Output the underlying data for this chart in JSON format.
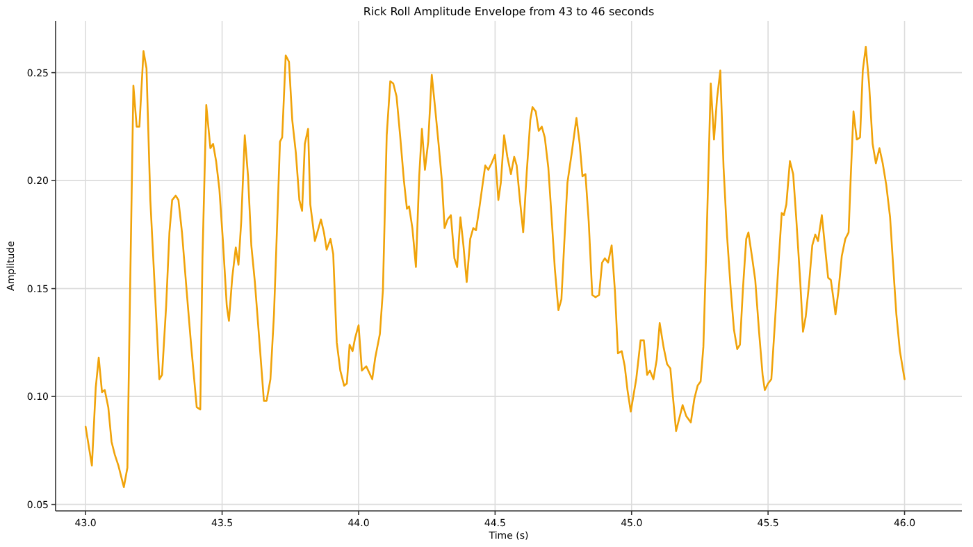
{
  "chart_data": {
    "type": "line",
    "title": "Rick Roll Amplitude Envelope from 43 to 46 seconds",
    "xlabel": "Time (s)",
    "ylabel": "Amplitude",
    "xlim": [
      42.89,
      46.21
    ],
    "ylim": [
      0.047,
      0.274
    ],
    "xticks": [
      {
        "value": 43,
        "label": "43.0"
      },
      {
        "value": 43.5,
        "label": "43.5"
      },
      {
        "value": 44,
        "label": "44.0"
      },
      {
        "value": 44.5,
        "label": "44.5"
      },
      {
        "value": 45,
        "label": "45.0"
      },
      {
        "value": 45.5,
        "label": "45.5"
      },
      {
        "value": 46,
        "label": "46.0"
      }
    ],
    "yticks": [
      {
        "value": 0.05,
        "label": "0.05"
      },
      {
        "value": 0.1,
        "label": "0.10"
      },
      {
        "value": 0.15,
        "label": "0.15"
      },
      {
        "value": 0.2,
        "label": "0.20"
      },
      {
        "value": 0.25,
        "label": "0.25"
      }
    ],
    "grid": true,
    "marker": "none",
    "line_style": "solid",
    "series": [
      {
        "color": "#f0a30a",
        "x": [
          43.0,
          43.023,
          43.037,
          43.048,
          43.06,
          43.07,
          43.083,
          43.095,
          43.107,
          43.12,
          43.14,
          43.153,
          43.162,
          43.175,
          43.187,
          43.197,
          43.212,
          43.223,
          43.237,
          43.253,
          43.27,
          43.28,
          43.295,
          43.307,
          43.317,
          43.33,
          43.34,
          43.353,
          43.37,
          43.387,
          43.407,
          43.42,
          43.428,
          43.442,
          43.457,
          43.467,
          43.478,
          43.49,
          43.503,
          43.517,
          43.525,
          43.537,
          43.55,
          43.56,
          43.57,
          43.583,
          43.595,
          43.607,
          43.62,
          43.637,
          43.653,
          43.663,
          43.677,
          43.69,
          43.7,
          43.712,
          43.72,
          43.733,
          43.745,
          43.757,
          43.77,
          43.783,
          43.793,
          43.803,
          43.815,
          43.823,
          43.84,
          43.862,
          43.873,
          43.883,
          43.897,
          43.907,
          43.92,
          43.933,
          43.947,
          43.957,
          43.967,
          43.978,
          43.987,
          44.0,
          44.012,
          44.028,
          44.05,
          44.061,
          44.078,
          44.089,
          44.103,
          44.116,
          44.127,
          44.139,
          44.152,
          44.166,
          44.177,
          44.185,
          44.197,
          44.21,
          44.222,
          44.232,
          44.243,
          44.255,
          44.268,
          44.28,
          44.293,
          44.305,
          44.315,
          44.326,
          44.338,
          44.351,
          44.361,
          44.373,
          44.384,
          44.396,
          44.409,
          44.42,
          44.43,
          44.442,
          44.454,
          44.464,
          44.475,
          44.487,
          44.5,
          44.512,
          44.521,
          44.533,
          44.545,
          44.558,
          44.57,
          44.579,
          44.591,
          44.603,
          44.616,
          44.629,
          44.637,
          44.649,
          44.66,
          44.671,
          44.682,
          44.695,
          44.707,
          44.719,
          44.732,
          44.743,
          44.753,
          44.765,
          44.781,
          44.798,
          44.81,
          44.82,
          44.831,
          44.843,
          44.856,
          44.868,
          44.881,
          44.892,
          44.902,
          44.914,
          44.927,
          44.939,
          44.95,
          44.964,
          44.975,
          44.985,
          44.997,
          45.017,
          45.033,
          45.045,
          45.057,
          45.067,
          45.08,
          45.092,
          45.103,
          45.117,
          45.13,
          45.142,
          45.15,
          45.163,
          45.175,
          45.187,
          45.2,
          45.217,
          45.23,
          45.242,
          45.253,
          45.263,
          45.275,
          45.29,
          45.302,
          45.313,
          45.325,
          45.337,
          45.35,
          45.363,
          45.375,
          45.387,
          45.397,
          45.408,
          45.42,
          45.428,
          45.442,
          45.453,
          45.467,
          45.48,
          45.488,
          45.5,
          45.512,
          45.525,
          45.537,
          45.55,
          45.558,
          45.567,
          45.58,
          45.592,
          45.603,
          45.617,
          45.628,
          45.638,
          45.65,
          45.662,
          45.673,
          45.683,
          45.697,
          45.708,
          45.72,
          45.73,
          45.742,
          45.747,
          45.758,
          45.77,
          45.783,
          45.795,
          45.803,
          45.813,
          45.825,
          45.837,
          45.847,
          45.858,
          45.87,
          45.883,
          45.895,
          45.908,
          45.92,
          45.933,
          45.947,
          45.958,
          45.97,
          45.983,
          46.0
        ],
        "values": [
          0.086,
          0.068,
          0.104,
          0.118,
          0.102,
          0.103,
          0.095,
          0.079,
          0.073,
          0.068,
          0.058,
          0.067,
          0.142,
          0.244,
          0.225,
          0.225,
          0.26,
          0.252,
          0.191,
          0.151,
          0.108,
          0.11,
          0.142,
          0.176,
          0.191,
          0.193,
          0.191,
          0.176,
          0.149,
          0.123,
          0.095,
          0.094,
          0.164,
          0.235,
          0.215,
          0.217,
          0.209,
          0.196,
          0.172,
          0.142,
          0.135,
          0.155,
          0.169,
          0.161,
          0.181,
          0.221,
          0.202,
          0.17,
          0.153,
          0.125,
          0.098,
          0.098,
          0.108,
          0.138,
          0.174,
          0.218,
          0.22,
          0.258,
          0.255,
          0.228,
          0.213,
          0.191,
          0.186,
          0.217,
          0.224,
          0.189,
          0.172,
          0.182,
          0.176,
          0.168,
          0.173,
          0.166,
          0.125,
          0.112,
          0.105,
          0.106,
          0.124,
          0.121,
          0.127,
          0.133,
          0.112,
          0.114,
          0.108,
          0.118,
          0.129,
          0.149,
          0.221,
          0.246,
          0.245,
          0.239,
          0.221,
          0.2,
          0.187,
          0.188,
          0.178,
          0.16,
          0.202,
          0.224,
          0.205,
          0.218,
          0.249,
          0.234,
          0.217,
          0.2,
          0.178,
          0.182,
          0.184,
          0.164,
          0.16,
          0.183,
          0.17,
          0.153,
          0.173,
          0.178,
          0.177,
          0.187,
          0.198,
          0.207,
          0.205,
          0.208,
          0.212,
          0.191,
          0.199,
          0.221,
          0.211,
          0.203,
          0.211,
          0.207,
          0.191,
          0.176,
          0.204,
          0.228,
          0.234,
          0.232,
          0.223,
          0.225,
          0.22,
          0.206,
          0.183,
          0.159,
          0.14,
          0.145,
          0.17,
          0.199,
          0.213,
          0.229,
          0.217,
          0.202,
          0.203,
          0.181,
          0.147,
          0.146,
          0.147,
          0.162,
          0.164,
          0.162,
          0.17,
          0.149,
          0.12,
          0.121,
          0.114,
          0.103,
          0.093,
          0.108,
          0.126,
          0.126,
          0.11,
          0.112,
          0.108,
          0.117,
          0.134,
          0.123,
          0.115,
          0.113,
          0.102,
          0.084,
          0.09,
          0.096,
          0.091,
          0.088,
          0.099,
          0.105,
          0.107,
          0.123,
          0.174,
          0.245,
          0.219,
          0.238,
          0.251,
          0.206,
          0.174,
          0.15,
          0.131,
          0.122,
          0.124,
          0.15,
          0.173,
          0.176,
          0.164,
          0.154,
          0.13,
          0.11,
          0.103,
          0.106,
          0.108,
          0.134,
          0.159,
          0.185,
          0.184,
          0.189,
          0.209,
          0.203,
          0.183,
          0.155,
          0.13,
          0.137,
          0.152,
          0.17,
          0.175,
          0.172,
          0.184,
          0.17,
          0.155,
          0.154,
          0.143,
          0.138,
          0.149,
          0.165,
          0.173,
          0.176,
          0.202,
          0.232,
          0.219,
          0.22,
          0.251,
          0.262,
          0.245,
          0.217,
          0.208,
          0.215,
          0.208,
          0.198,
          0.183,
          0.161,
          0.138,
          0.121,
          0.108
        ]
      }
    ]
  }
}
